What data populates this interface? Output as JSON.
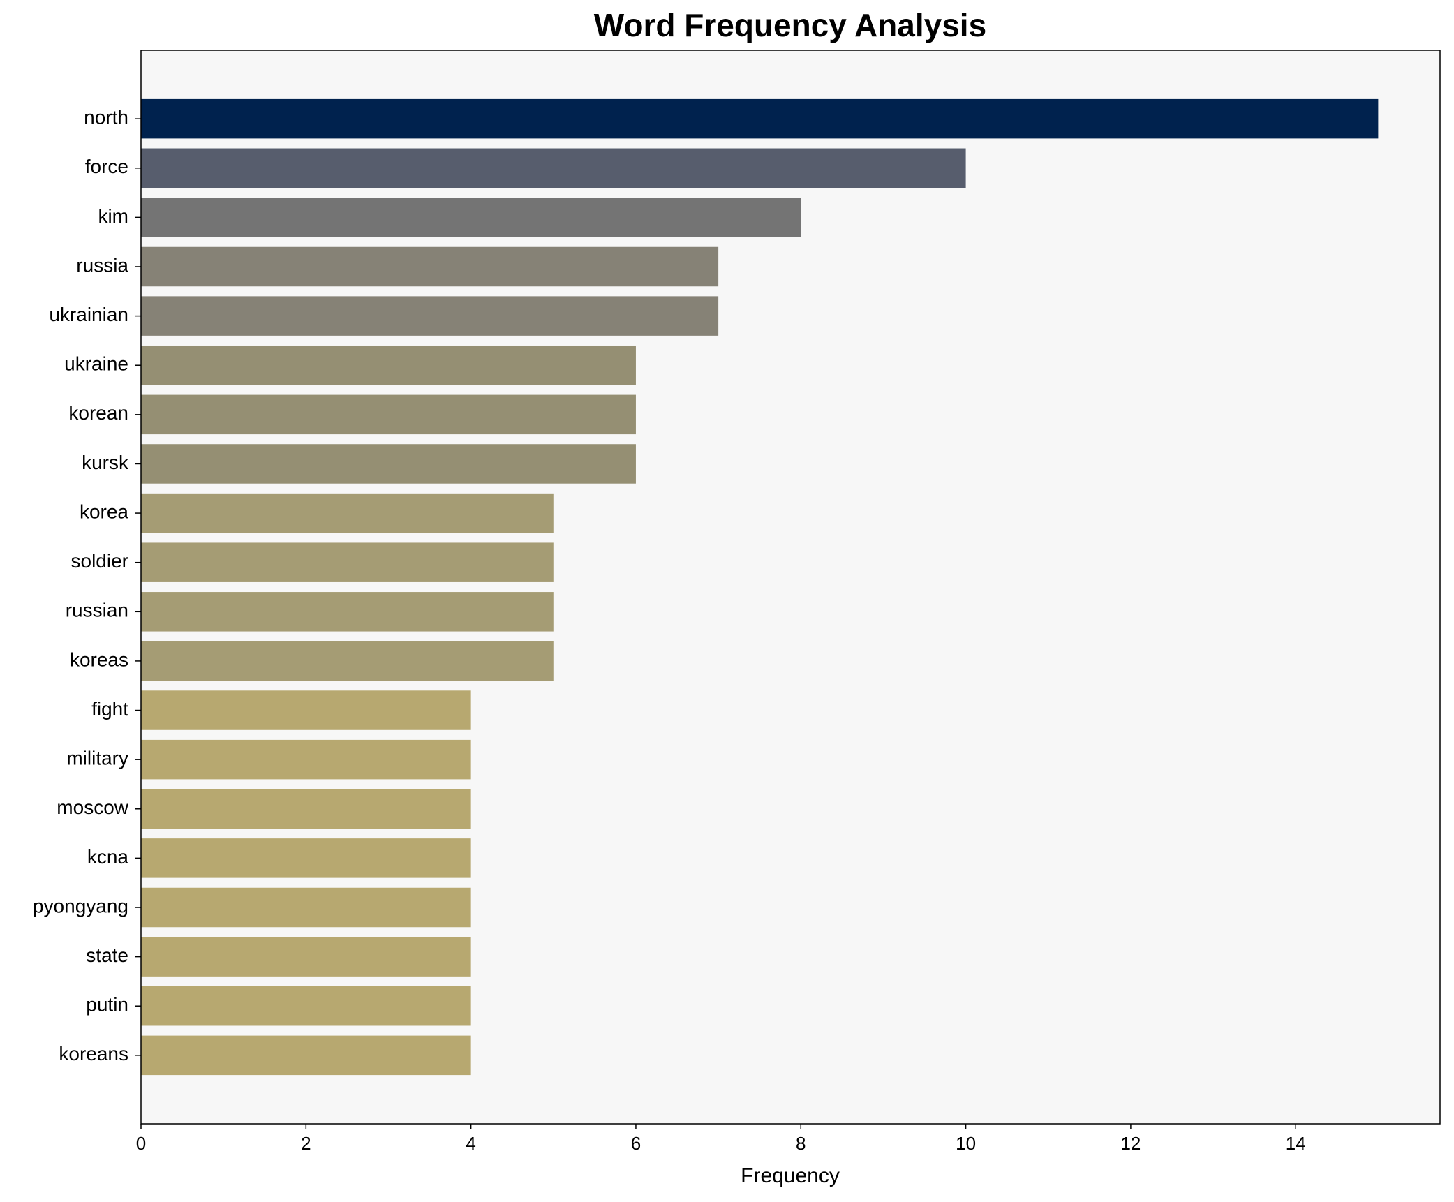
{
  "chart_data": {
    "type": "barh",
    "title": "Word Frequency Analysis",
    "xlabel": "Frequency",
    "categories": [
      "north",
      "force",
      "kim",
      "russia",
      "ukrainian",
      "ukraine",
      "korean",
      "kursk",
      "korea",
      "soldier",
      "russian",
      "koreas",
      "fight",
      "military",
      "moscow",
      "kcna",
      "pyongyang",
      "state",
      "putin",
      "koreans"
    ],
    "values": [
      15,
      10,
      8,
      7,
      7,
      6,
      6,
      6,
      5,
      5,
      5,
      5,
      4,
      4,
      4,
      4,
      4,
      4,
      4,
      4
    ],
    "colors": [
      "#00224e",
      "#575d6d",
      "#747474",
      "#868276",
      "#868276",
      "#958f73",
      "#958f73",
      "#958f73",
      "#a59c74",
      "#a59c74",
      "#a59c74",
      "#a59c74",
      "#b7a870",
      "#b7a870",
      "#b7a870",
      "#b7a870",
      "#b7a870",
      "#b7a870",
      "#b7a870",
      "#b7a870"
    ],
    "xlim": [
      0,
      15.75
    ],
    "xticks": [
      0,
      2,
      4,
      6,
      8,
      10,
      12,
      14
    ],
    "grid": false
  }
}
